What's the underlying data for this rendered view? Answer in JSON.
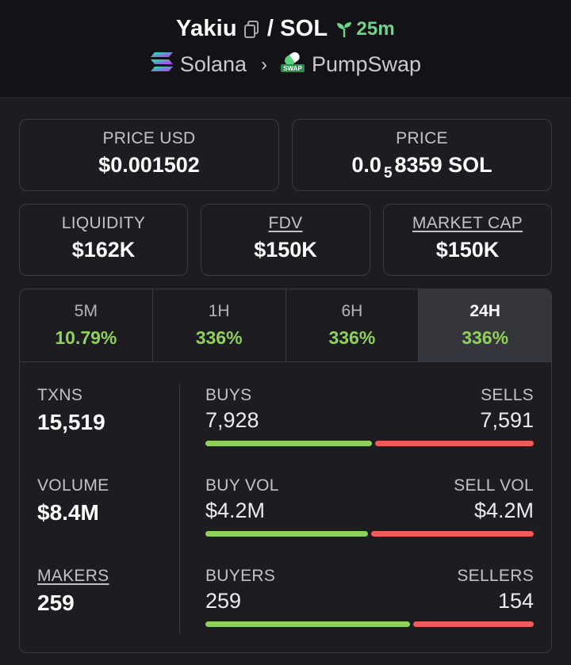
{
  "header": {
    "token": "Yakiu",
    "separator": "/",
    "quote": "SOL",
    "age": "25m",
    "chain": "Solana",
    "dex": "PumpSwap",
    "dex_badge": "SWAP"
  },
  "cards": {
    "price_usd_label": "PRICE USD",
    "price_usd": "$0.001502",
    "price_label": "PRICE",
    "price_prefix": "0.0",
    "price_sub": "5",
    "price_suffix": "8359 SOL",
    "liquidity_label": "LIQUIDITY",
    "liquidity": "$162K",
    "fdv_label": "FDV",
    "fdv": "$150K",
    "mcap_label": "MARKET CAP",
    "mcap": "$150K"
  },
  "tabs": [
    {
      "label": "5M",
      "value": "10.79%"
    },
    {
      "label": "1H",
      "value": "336%"
    },
    {
      "label": "6H",
      "value": "336%"
    },
    {
      "label": "24H",
      "value": "336%"
    }
  ],
  "stats": {
    "txns_label": "TXNS",
    "txns": "15,519",
    "volume_label": "VOLUME",
    "volume": "$8.4M",
    "makers_label": "MAKERS",
    "makers": "259",
    "buys_label": "BUYS",
    "buys": "7,928",
    "sells_label": "SELLS",
    "sells": "7,591",
    "buy_vol_label": "BUY VOL",
    "buy_vol": "$4.2M",
    "sell_vol_label": "SELL VOL",
    "sell_vol": "$4.2M",
    "buyers_label": "BUYERS",
    "buyers": "259",
    "sellers_label": "SELLERS",
    "sellers": "154"
  },
  "bars": {
    "buys_fraction": 0.511,
    "buy_vol_fraction": 0.5,
    "buyers_fraction": 0.627
  },
  "colors": {
    "positive": "#8fd15a",
    "negative": "#ef5b5b",
    "age": "#6fd38a"
  }
}
